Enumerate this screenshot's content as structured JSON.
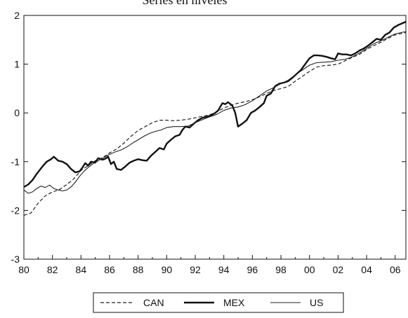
{
  "chart_data": {
    "type": "line",
    "title": "Series en niveles",
    "xlabel": "",
    "ylabel": "",
    "xlim": [
      1980,
      2006.75
    ],
    "ylim": [
      -3,
      2
    ],
    "x_ticks": [
      1980,
      1982,
      1984,
      1986,
      1988,
      1990,
      1992,
      1994,
      1996,
      1998,
      2000,
      2002,
      2004,
      2006
    ],
    "x_tick_labels": [
      "80",
      "82",
      "84",
      "86",
      "88",
      "90",
      "92",
      "94",
      "96",
      "98",
      "00",
      "02",
      "04",
      "06"
    ],
    "y_ticks": [
      -3,
      -2,
      -1,
      0,
      1,
      2
    ],
    "y_tick_labels": [
      "-3",
      "-2",
      "-1",
      "0",
      "1",
      "2"
    ],
    "grid": false,
    "legend_position": "bottom",
    "series": [
      {
        "name": "CAN",
        "style": "dashed",
        "color": "#222222",
        "points": [
          [
            1980,
            -2.1
          ],
          [
            1980.5,
            -2.05
          ],
          [
            1981,
            -1.85
          ],
          [
            1981.5,
            -1.7
          ],
          [
            1982,
            -1.62
          ],
          [
            1982.5,
            -1.57
          ],
          [
            1983,
            -1.47
          ],
          [
            1983.5,
            -1.35
          ],
          [
            1984,
            -1.18
          ],
          [
            1984.5,
            -1.08
          ],
          [
            1985,
            -0.98
          ],
          [
            1985.5,
            -0.92
          ],
          [
            1986,
            -0.82
          ],
          [
            1986.5,
            -0.74
          ],
          [
            1987,
            -0.62
          ],
          [
            1987.5,
            -0.48
          ],
          [
            1988,
            -0.36
          ],
          [
            1988.5,
            -0.28
          ],
          [
            1989,
            -0.2
          ],
          [
            1989.5,
            -0.15
          ],
          [
            1990,
            -0.15
          ],
          [
            1990.5,
            -0.16
          ],
          [
            1991,
            -0.15
          ],
          [
            1991.5,
            -0.13
          ],
          [
            1992,
            -0.1
          ],
          [
            1992.5,
            -0.07
          ],
          [
            1993,
            -0.04
          ],
          [
            1993.5,
            0.02
          ],
          [
            1994,
            0.1
          ],
          [
            1994.5,
            0.16
          ],
          [
            1995,
            0.2
          ],
          [
            1995.5,
            0.23
          ],
          [
            1996,
            0.27
          ],
          [
            1996.5,
            0.33
          ],
          [
            1997,
            0.4
          ],
          [
            1997.5,
            0.46
          ],
          [
            1998,
            0.5
          ],
          [
            1998.5,
            0.54
          ],
          [
            1999,
            0.65
          ],
          [
            1999.5,
            0.75
          ],
          [
            2000,
            0.85
          ],
          [
            2000.5,
            0.94
          ],
          [
            2001,
            0.97
          ],
          [
            2001.5,
            0.98
          ],
          [
            2002,
            1.0
          ],
          [
            2002.5,
            1.07
          ],
          [
            2003,
            1.14
          ],
          [
            2003.5,
            1.2
          ],
          [
            2004,
            1.3
          ],
          [
            2004.5,
            1.38
          ],
          [
            2005,
            1.45
          ],
          [
            2005.5,
            1.53
          ],
          [
            2006,
            1.6
          ],
          [
            2006.75,
            1.65
          ]
        ]
      },
      {
        "name": "MEX",
        "style": "thick",
        "color": "#111111",
        "points": [
          [
            1980,
            -1.52
          ],
          [
            1980.3,
            -1.47
          ],
          [
            1980.6,
            -1.38
          ],
          [
            1980.9,
            -1.25
          ],
          [
            1981.3,
            -1.1
          ],
          [
            1981.6,
            -1.0
          ],
          [
            1981.9,
            -0.95
          ],
          [
            1982.1,
            -0.9
          ],
          [
            1982.4,
            -0.98
          ],
          [
            1982.7,
            -1.0
          ],
          [
            1983,
            -1.05
          ],
          [
            1983.3,
            -1.15
          ],
          [
            1983.6,
            -1.22
          ],
          [
            1983.9,
            -1.2
          ],
          [
            1984.1,
            -1.12
          ],
          [
            1984.3,
            -1.03
          ],
          [
            1984.5,
            -1.08
          ],
          [
            1984.7,
            -1.0
          ],
          [
            1985,
            -1.02
          ],
          [
            1985.2,
            -0.93
          ],
          [
            1985.5,
            -0.96
          ],
          [
            1985.7,
            -0.94
          ],
          [
            1985.9,
            -0.9
          ],
          [
            1986.1,
            -1.05
          ],
          [
            1986.3,
            -1.0
          ],
          [
            1986.5,
            -1.15
          ],
          [
            1986.8,
            -1.17
          ],
          [
            1987.1,
            -1.1
          ],
          [
            1987.4,
            -1.02
          ],
          [
            1987.7,
            -0.98
          ],
          [
            1988,
            -0.95
          ],
          [
            1988.3,
            -0.97
          ],
          [
            1988.6,
            -0.98
          ],
          [
            1988.9,
            -0.88
          ],
          [
            1989.2,
            -0.8
          ],
          [
            1989.5,
            -0.72
          ],
          [
            1989.8,
            -0.75
          ],
          [
            1990,
            -0.63
          ],
          [
            1990.3,
            -0.55
          ],
          [
            1990.6,
            -0.48
          ],
          [
            1990.9,
            -0.45
          ],
          [
            1991.1,
            -0.35
          ],
          [
            1991.3,
            -0.28
          ],
          [
            1991.6,
            -0.3
          ],
          [
            1991.9,
            -0.22
          ],
          [
            1992.2,
            -0.15
          ],
          [
            1992.5,
            -0.1
          ],
          [
            1992.8,
            -0.08
          ],
          [
            1993.1,
            -0.05
          ],
          [
            1993.4,
            0.0
          ],
          [
            1993.6,
            0.05
          ],
          [
            1993.9,
            0.2
          ],
          [
            1994.1,
            0.18
          ],
          [
            1994.3,
            0.22
          ],
          [
            1994.6,
            0.15
          ],
          [
            1994.8,
            0.0
          ],
          [
            1995,
            -0.28
          ],
          [
            1995.3,
            -0.22
          ],
          [
            1995.6,
            -0.15
          ],
          [
            1995.9,
            0.0
          ],
          [
            1996.2,
            0.05
          ],
          [
            1996.5,
            0.12
          ],
          [
            1996.8,
            0.2
          ],
          [
            1997,
            0.35
          ],
          [
            1997.3,
            0.4
          ],
          [
            1997.6,
            0.55
          ],
          [
            1997.9,
            0.6
          ],
          [
            1998.2,
            0.62
          ],
          [
            1998.5,
            0.65
          ],
          [
            1998.8,
            0.72
          ],
          [
            1999.1,
            0.8
          ],
          [
            1999.4,
            0.88
          ],
          [
            1999.7,
            1.0
          ],
          [
            2000,
            1.12
          ],
          [
            2000.3,
            1.18
          ],
          [
            2000.6,
            1.18
          ],
          [
            2000.9,
            1.17
          ],
          [
            2001.2,
            1.15
          ],
          [
            2001.5,
            1.12
          ],
          [
            2001.8,
            1.1
          ],
          [
            2002,
            1.22
          ],
          [
            2002.3,
            1.2
          ],
          [
            2002.6,
            1.2
          ],
          [
            2002.9,
            1.18
          ],
          [
            2003.2,
            1.22
          ],
          [
            2003.5,
            1.28
          ],
          [
            2003.8,
            1.32
          ],
          [
            2004.1,
            1.38
          ],
          [
            2004.4,
            1.45
          ],
          [
            2004.7,
            1.52
          ],
          [
            2005,
            1.5
          ],
          [
            2005.3,
            1.6
          ],
          [
            2005.6,
            1.65
          ],
          [
            2005.9,
            1.75
          ],
          [
            2006.2,
            1.8
          ],
          [
            2006.75,
            1.87
          ]
        ]
      },
      {
        "name": "US",
        "style": "thin",
        "color": "#222222",
        "points": [
          [
            1980,
            -1.58
          ],
          [
            1980.3,
            -1.65
          ],
          [
            1980.6,
            -1.62
          ],
          [
            1980.9,
            -1.55
          ],
          [
            1981.2,
            -1.5
          ],
          [
            1981.5,
            -1.53
          ],
          [
            1981.8,
            -1.48
          ],
          [
            1982.1,
            -1.55
          ],
          [
            1982.4,
            -1.58
          ],
          [
            1982.7,
            -1.6
          ],
          [
            1983,
            -1.58
          ],
          [
            1983.3,
            -1.52
          ],
          [
            1983.6,
            -1.42
          ],
          [
            1983.9,
            -1.3
          ],
          [
            1984.2,
            -1.2
          ],
          [
            1984.5,
            -1.12
          ],
          [
            1984.8,
            -1.05
          ],
          [
            1985.1,
            -1.0
          ],
          [
            1985.4,
            -0.95
          ],
          [
            1985.7,
            -0.9
          ],
          [
            1986,
            -0.85
          ],
          [
            1986.4,
            -0.8
          ],
          [
            1986.8,
            -0.76
          ],
          [
            1987.2,
            -0.7
          ],
          [
            1987.6,
            -0.62
          ],
          [
            1988,
            -0.55
          ],
          [
            1988.4,
            -0.48
          ],
          [
            1988.8,
            -0.42
          ],
          [
            1989.2,
            -0.38
          ],
          [
            1989.6,
            -0.35
          ],
          [
            1990,
            -0.3
          ],
          [
            1990.5,
            -0.28
          ],
          [
            1991,
            -0.28
          ],
          [
            1991.5,
            -0.27
          ],
          [
            1992,
            -0.2
          ],
          [
            1992.5,
            -0.14
          ],
          [
            1993,
            -0.08
          ],
          [
            1993.5,
            -0.03
          ],
          [
            1994,
            0.05
          ],
          [
            1994.5,
            0.1
          ],
          [
            1995,
            0.12
          ],
          [
            1995.5,
            0.17
          ],
          [
            1996,
            0.25
          ],
          [
            1996.5,
            0.35
          ],
          [
            1997,
            0.45
          ],
          [
            1997.5,
            0.52
          ],
          [
            1998,
            0.6
          ],
          [
            1998.5,
            0.67
          ],
          [
            1999,
            0.78
          ],
          [
            1999.5,
            0.88
          ],
          [
            2000,
            0.98
          ],
          [
            2000.5,
            1.03
          ],
          [
            2001,
            1.04
          ],
          [
            2001.5,
            1.05
          ],
          [
            2002,
            1.08
          ],
          [
            2002.5,
            1.1
          ],
          [
            2003,
            1.15
          ],
          [
            2003.5,
            1.23
          ],
          [
            2004,
            1.32
          ],
          [
            2004.5,
            1.42
          ],
          [
            2005,
            1.48
          ],
          [
            2005.5,
            1.55
          ],
          [
            2006,
            1.62
          ],
          [
            2006.75,
            1.67
          ]
        ]
      }
    ]
  }
}
